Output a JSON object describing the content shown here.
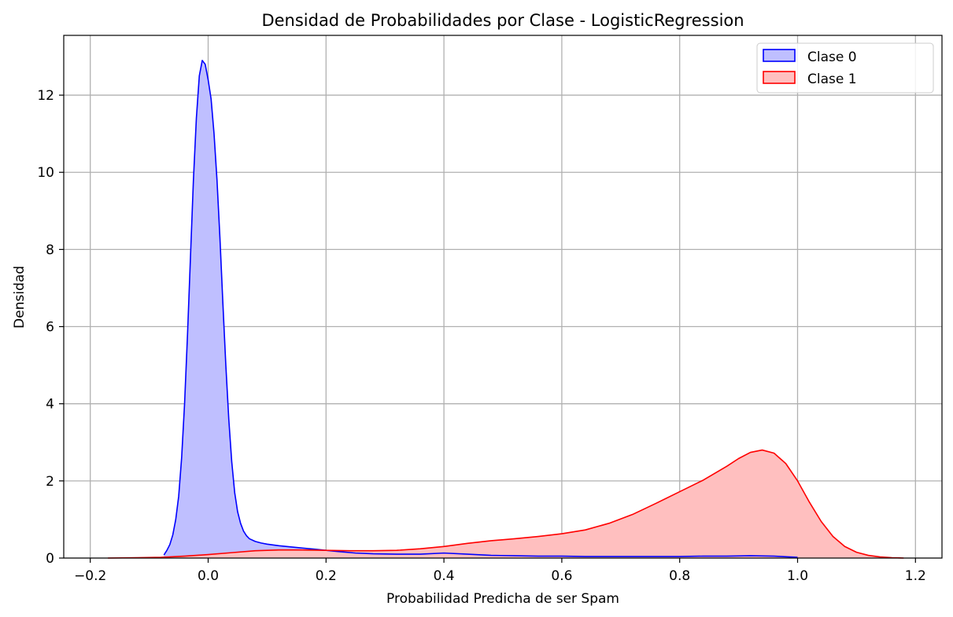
{
  "chart_data": {
    "type": "area",
    "title": "Densidad de Probabilidades por Clase - LogisticRegression",
    "xlabel": "Probabilidad Predicha de ser Spam",
    "ylabel": "Densidad",
    "xlim": [
      -0.245,
      1.245
    ],
    "ylim": [
      0,
      13.55
    ],
    "xticks": [
      -0.2,
      0.0,
      0.2,
      0.4,
      0.6,
      0.8,
      1.0,
      1.2
    ],
    "xtick_labels": [
      "−0.2",
      "0.0",
      "0.2",
      "0.4",
      "0.6",
      "0.8",
      "1.0",
      "1.2"
    ],
    "yticks": [
      0,
      2,
      4,
      6,
      8,
      10,
      12
    ],
    "ytick_labels": [
      "0",
      "2",
      "4",
      "6",
      "8",
      "10",
      "12"
    ],
    "grid": true,
    "legend_position": "top-right",
    "series": [
      {
        "name": "Clase 0",
        "line_color": "#0000ff",
        "fill_color": "#bfbfff",
        "x": [
          -0.075,
          -0.07,
          -0.065,
          -0.06,
          -0.055,
          -0.05,
          -0.045,
          -0.04,
          -0.035,
          -0.03,
          -0.025,
          -0.02,
          -0.015,
          -0.01,
          -0.005,
          0.0,
          0.005,
          0.01,
          0.015,
          0.02,
          0.025,
          0.03,
          0.035,
          0.04,
          0.045,
          0.05,
          0.055,
          0.06,
          0.065,
          0.07,
          0.08,
          0.09,
          0.1,
          0.12,
          0.14,
          0.16,
          0.18,
          0.2,
          0.22,
          0.25,
          0.28,
          0.32,
          0.36,
          0.4,
          0.44,
          0.48,
          0.52,
          0.56,
          0.6,
          0.64,
          0.68,
          0.72,
          0.76,
          0.8,
          0.84,
          0.88,
          0.92,
          0.96,
          1.0
        ],
        "y": [
          0.08,
          0.2,
          0.35,
          0.6,
          1.0,
          1.6,
          2.6,
          4.0,
          5.8,
          7.8,
          9.8,
          11.4,
          12.5,
          12.9,
          12.8,
          12.4,
          11.9,
          11.0,
          9.8,
          8.3,
          6.6,
          5.0,
          3.6,
          2.5,
          1.7,
          1.2,
          0.9,
          0.7,
          0.58,
          0.5,
          0.43,
          0.39,
          0.36,
          0.32,
          0.29,
          0.26,
          0.23,
          0.2,
          0.17,
          0.13,
          0.11,
          0.1,
          0.1,
          0.13,
          0.1,
          0.07,
          0.06,
          0.05,
          0.05,
          0.04,
          0.04,
          0.04,
          0.04,
          0.04,
          0.05,
          0.05,
          0.06,
          0.05,
          0.02
        ]
      },
      {
        "name": "Clase 1",
        "line_color": "#ff0000",
        "fill_color": "#ffbfbf",
        "x": [
          -0.17,
          -0.12,
          -0.08,
          -0.04,
          0.0,
          0.04,
          0.08,
          0.12,
          0.16,
          0.2,
          0.24,
          0.28,
          0.32,
          0.36,
          0.4,
          0.44,
          0.48,
          0.52,
          0.56,
          0.6,
          0.64,
          0.68,
          0.72,
          0.76,
          0.8,
          0.84,
          0.88,
          0.9,
          0.92,
          0.94,
          0.96,
          0.98,
          1.0,
          1.02,
          1.04,
          1.06,
          1.08,
          1.1,
          1.12,
          1.14,
          1.16,
          1.18
        ],
        "y": [
          0.0,
          0.01,
          0.02,
          0.05,
          0.09,
          0.14,
          0.19,
          0.21,
          0.21,
          0.2,
          0.19,
          0.19,
          0.2,
          0.24,
          0.3,
          0.38,
          0.45,
          0.5,
          0.56,
          0.63,
          0.73,
          0.9,
          1.13,
          1.42,
          1.72,
          2.02,
          2.38,
          2.58,
          2.74,
          2.8,
          2.72,
          2.45,
          2.0,
          1.45,
          0.95,
          0.56,
          0.3,
          0.15,
          0.07,
          0.03,
          0.01,
          0.0
        ]
      }
    ]
  }
}
